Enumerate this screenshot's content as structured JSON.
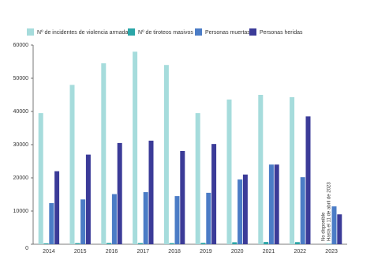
{
  "chart_data": {
    "type": "bar",
    "categories": [
      "2014",
      "2015",
      "2016",
      "2017",
      "2018",
      "2019",
      "2020",
      "2021",
      "2022",
      "2023"
    ],
    "series": [
      {
        "name": "Nº de incidentes de violencia armada",
        "color": "#a6dcdc",
        "values": [
          39500,
          48000,
          54500,
          58000,
          54000,
          39500,
          43600,
          45000,
          44300,
          null
        ]
      },
      {
        "name": "Nº de tiroteos masivos",
        "color": "#2ba6a8",
        "values": [
          270,
          335,
          382,
          346,
          336,
          417,
          610,
          690,
          647,
          130
        ]
      },
      {
        "name": "Personas muertas",
        "color": "#4b7cc6",
        "values": [
          12400,
          13500,
          15100,
          15700,
          14500,
          15500,
          19500,
          24000,
          20200,
          11400
        ]
      },
      {
        "name": "Personas heridas",
        "color": "#3b3b98",
        "values": [
          22000,
          27000,
          30500,
          31200,
          28100,
          30200,
          21000,
          24000,
          38500,
          9000
        ]
      }
    ],
    "annotations": [
      "No disponible",
      "Hasta el 11 de abril de 2023"
    ],
    "ylim": [
      0,
      60000
    ],
    "yticks": [
      0,
      10000,
      20000,
      30000,
      40000,
      50000,
      60000
    ],
    "grid": false
  }
}
